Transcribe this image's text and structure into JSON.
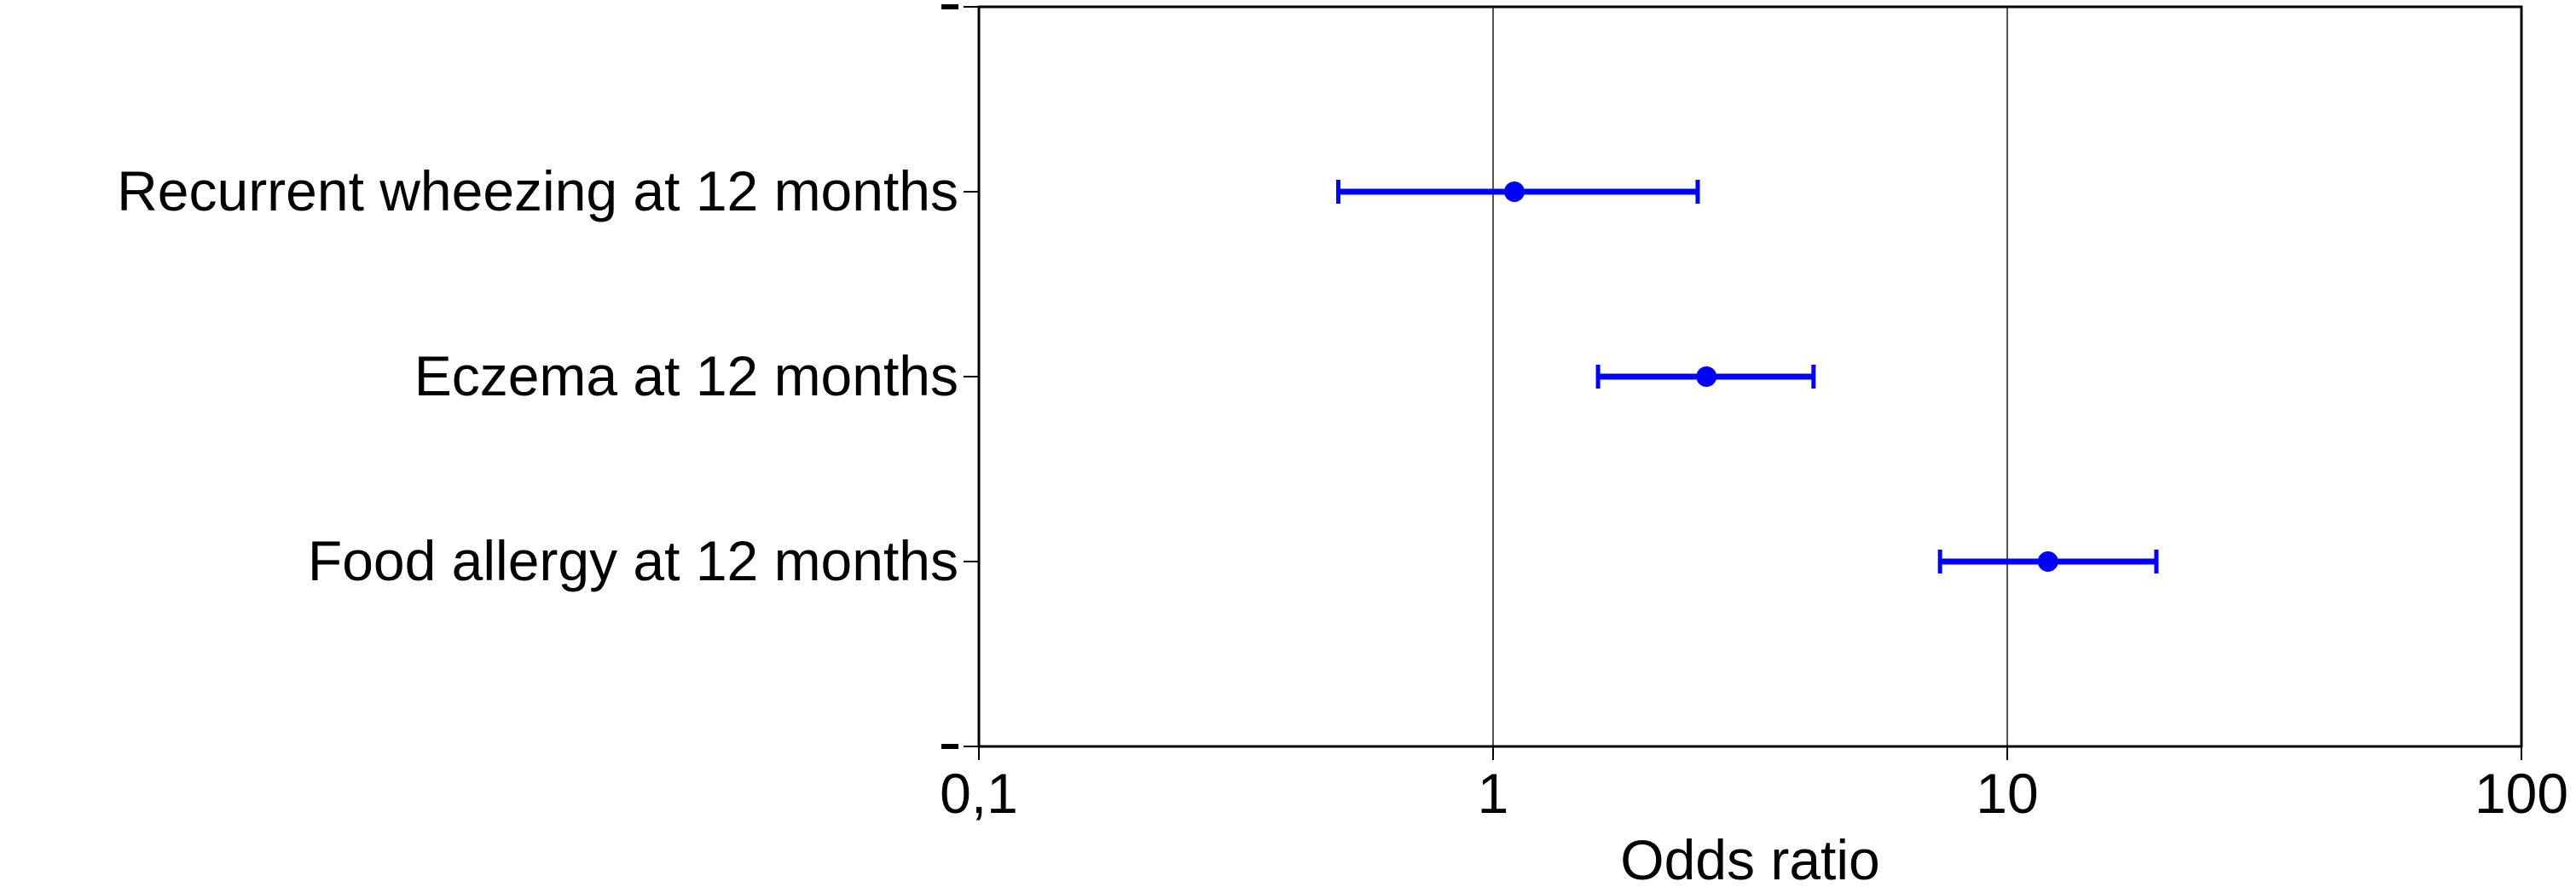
{
  "chart_data": {
    "type": "scatter",
    "subtype": "forest-plot",
    "xlabel": "Odds ratio",
    "ylabel": "",
    "xscale": "log",
    "xlim": [
      0.1,
      100
    ],
    "xticks": [
      0.1,
      1,
      10,
      100
    ],
    "xtick_labels": [
      "0,1",
      "1",
      "10",
      "100"
    ],
    "vertical_reference_lines": [
      1,
      10
    ],
    "grid": false,
    "legend": "none",
    "categories": [
      "Recurrent wheezing at 12 months",
      "Eczema at 12 months",
      "Food allergy at 12 months"
    ],
    "series": [
      {
        "point_estimate": [
          1.1,
          2.6,
          12
        ],
        "ci_lower": [
          0.5,
          1.6,
          7.4
        ],
        "ci_upper": [
          2.5,
          4.2,
          19.5
        ]
      }
    ],
    "colors": {
      "marker": "#0000ff",
      "axis": "#000000",
      "reference_line": "#555555"
    }
  }
}
